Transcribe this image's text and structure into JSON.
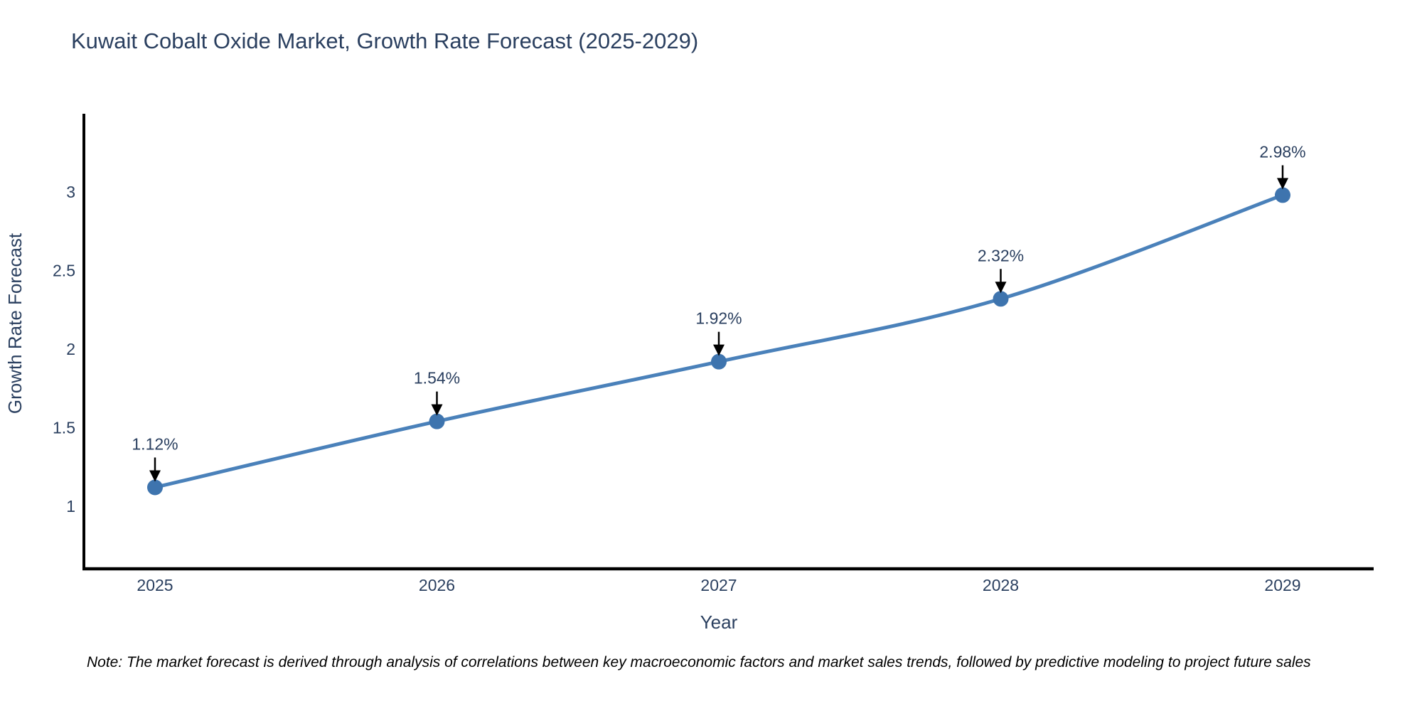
{
  "title": "Kuwait Cobalt Oxide Market, Growth Rate Forecast (2025-2029)",
  "note": "Note: The market forecast is derived through analysis of correlations between key macroeconomic factors and market sales trends, followed by predictive modeling to project future sales",
  "chart_data": {
    "type": "line",
    "title": "Kuwait Cobalt Oxide Market, Growth Rate Forecast (2025-2029)",
    "xlabel": "Year",
    "ylabel": "Growth Rate Forecast",
    "categories": [
      "2025",
      "2026",
      "2027",
      "2028",
      "2029"
    ],
    "values": [
      1.12,
      1.54,
      1.92,
      2.32,
      2.98
    ],
    "point_labels": [
      "1.12%",
      "1.54%",
      "1.92%",
      "2.32%",
      "2.98%"
    ],
    "yticks": [
      1,
      1.5,
      2,
      2.5,
      3
    ],
    "ytick_labels": [
      "1",
      "1.5",
      "2",
      "2.5",
      "3"
    ],
    "ylim": [
      0.6,
      3.55
    ],
    "line_shape": "spline",
    "grid": false,
    "legend_position": "none",
    "annotation_style": "black arrow pointing down to each marker",
    "colors": {
      "line": "#4a81ba",
      "marker": "#3e74ae",
      "axis_line": "#000000",
      "tick_text": "#2a3f5f",
      "title_text": "#2a3f5f",
      "annotation_text": "#2a3f5f",
      "arrow": "#000000",
      "note_text": "#000000",
      "background": "#ffffff"
    }
  }
}
